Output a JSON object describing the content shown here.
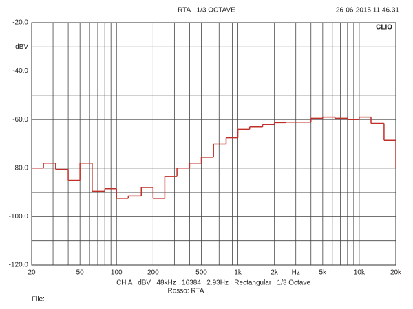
{
  "chart_data": {
    "type": "step",
    "title": "RTA - 1/3 OCTAVE",
    "timestamp": "26-06-2015 11.46.31",
    "brand": "CLIO",
    "footer": "CH A   dBV   48kHz   16384   2.93Hz   Rectangular   1/3 Octave",
    "legend_note": "Rosso: RTA",
    "file_label": "File:",
    "x_scale": "log",
    "xlim": [
      20,
      20000
    ],
    "ylim": [
      -120,
      -20
    ],
    "xticks": [
      20,
      50,
      100,
      200,
      500,
      {
        "value": 1000,
        "label": "1k"
      },
      {
        "value": 2000,
        "label": "2k"
      },
      {
        "value": 3000,
        "label": "Hz"
      },
      {
        "value": 5000,
        "label": "5k"
      },
      {
        "value": 10000,
        "label": "10k"
      },
      {
        "value": 20000,
        "label": "20k"
      }
    ],
    "xminor": [
      30,
      40,
      60,
      70,
      80,
      90,
      300,
      400,
      600,
      700,
      800,
      900,
      4000,
      6000,
      7000,
      8000,
      9000
    ],
    "yticks": [
      {
        "value": -20,
        "label": "-20.0"
      },
      {
        "value": -30,
        "label": "dBV"
      },
      {
        "value": -40,
        "label": "-40.0"
      },
      {
        "value": -60,
        "label": "-60.0"
      },
      {
        "value": -80,
        "label": "-80.0"
      },
      {
        "value": -100,
        "label": "-100.0"
      },
      {
        "value": -120,
        "label": "-120.0"
      }
    ],
    "yminor": [
      -50,
      -70,
      -90,
      -110
    ],
    "grid": true,
    "color": "#c0302a",
    "x": [
      20,
      25,
      31.5,
      40,
      50,
      63,
      80,
      100,
      125,
      160,
      200,
      250,
      315,
      400,
      500,
      630,
      800,
      1000,
      1250,
      1600,
      2000,
      2500,
      3150,
      4000,
      5000,
      6300,
      8000,
      10000,
      12500,
      16000,
      20000
    ],
    "values": [
      -80,
      -78,
      -80.5,
      -85,
      -78,
      -89.5,
      -88.5,
      -92.5,
      -91.5,
      -88,
      -92.5,
      -83.5,
      -80,
      -78,
      -75.5,
      -70,
      -67.5,
      -64,
      -63,
      -62,
      -61.2,
      -61,
      -61,
      -59.5,
      -59,
      -59.5,
      -60,
      -59,
      -61.5,
      -68.5,
      -80
    ]
  }
}
